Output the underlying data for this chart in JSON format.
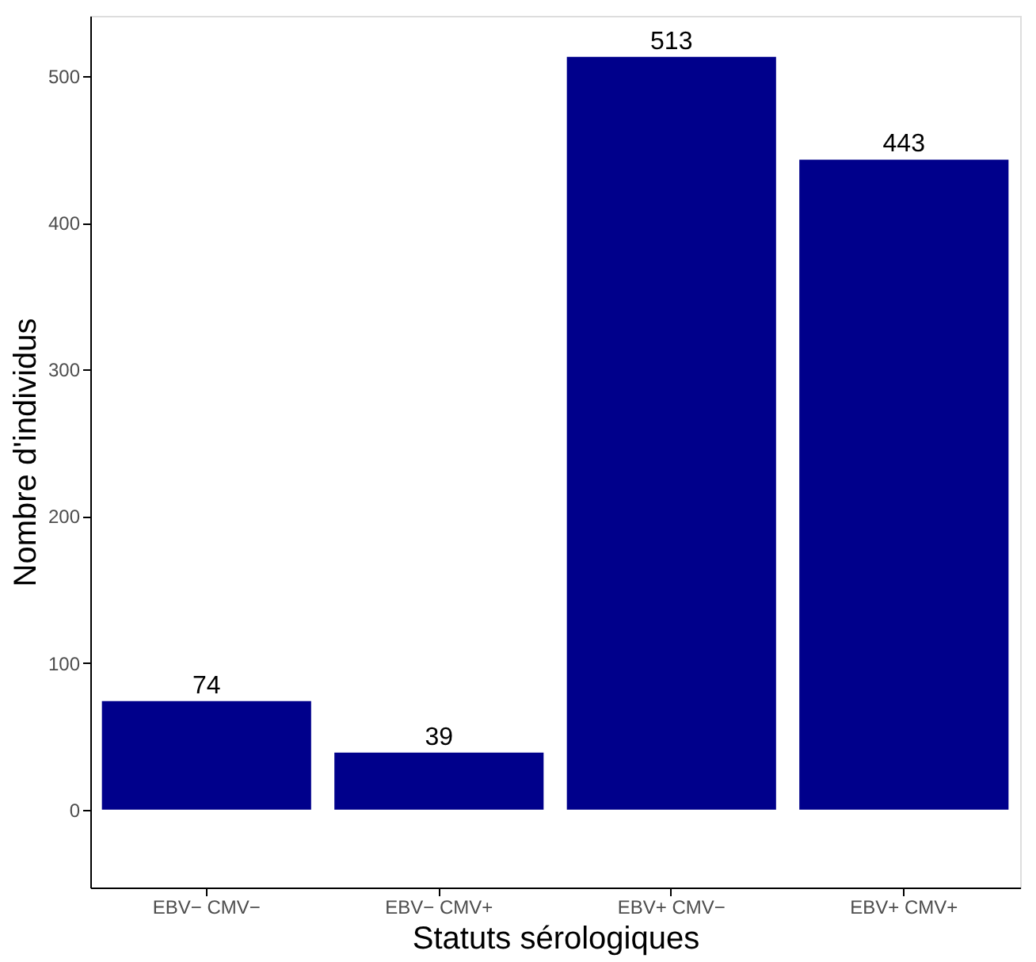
{
  "chart_data": {
    "type": "bar",
    "xlabel": "Statuts sérologiques",
    "ylabel": "Nombre d'individus",
    "categories": [
      "EBV− CMV−",
      "EBV− CMV+",
      "EBV+ CMV−",
      "EBV+ CMV+"
    ],
    "values": [
      74,
      39,
      513,
      443
    ],
    "color": "#00008b",
    "ylim": [
      -53,
      541
    ],
    "yticks": [
      0,
      100,
      200,
      300,
      400,
      500
    ],
    "data_labels": true,
    "grid": false
  }
}
